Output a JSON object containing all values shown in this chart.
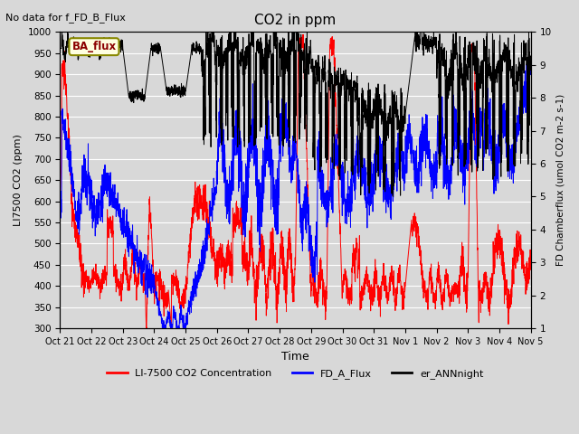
{
  "title": "CO2 in ppm",
  "top_left_text": "No data for f_FD_B_Flux",
  "legend_box_text": "BA_flux",
  "xlabel": "Time",
  "ylabel_left": "LI7500 CO2 (ppm)",
  "ylabel_right": "FD Chamberflux (umol CO2 m-2 s-1)",
  "ylim_left": [
    300,
    1000
  ],
  "ylim_right": [
    1.0,
    10.0
  ],
  "yticks_left": [
    300,
    350,
    400,
    450,
    500,
    550,
    600,
    650,
    700,
    750,
    800,
    850,
    900,
    950,
    1000
  ],
  "yticks_right": [
    1.0,
    2.0,
    3.0,
    4.0,
    5.0,
    6.0,
    7.0,
    8.0,
    9.0,
    10.0
  ],
  "xtick_labels": [
    "Oct 21",
    "Oct 22",
    "Oct 23",
    "Oct 24",
    "Oct 25",
    "Oct 26",
    "Oct 27",
    "Oct 28",
    "Oct 29",
    "Oct 30",
    "Oct 31",
    "Nov 1",
    "Nov 2",
    "Nov 3",
    "Nov 4",
    "Nov 5"
  ],
  "background_color": "#d8d8d8",
  "plot_bg_color": "#d8d8d8",
  "grid_color": "white",
  "figsize": [
    6.4,
    4.8
  ],
  "dpi": 100
}
